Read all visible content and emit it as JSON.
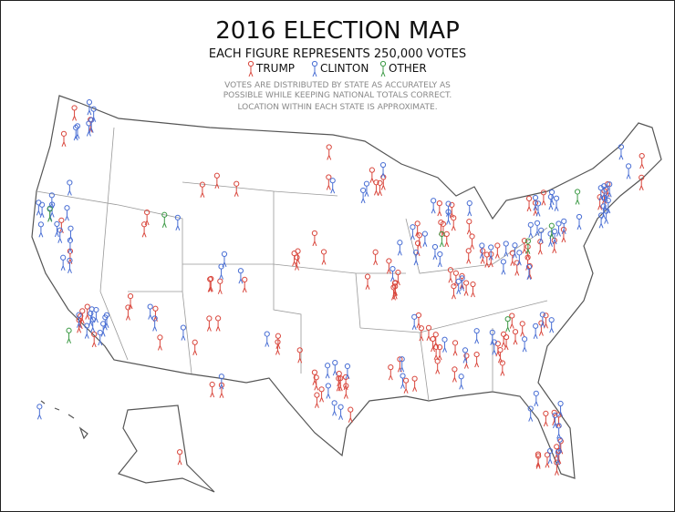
{
  "title": "2016 ELECTION MAP",
  "subtitle": "EACH FIGURE REPRESENTS 250,000 VOTES",
  "legend": [
    {
      "label": "TRUMP",
      "color": "#d9473d"
    },
    {
      "label": "CLINTON",
      "color": "#4a6fd4"
    },
    {
      "label": "OTHER",
      "color": "#3c9a45"
    }
  ],
  "notes": [
    "VOTES ARE DISTRIBUTED BY STATE AS ACCURATELY AS",
    "POSSIBLE WHILE KEEPING NATIONAL TOTALS CORRECT.",
    "LOCATION WITHIN EACH STATE IS APPROXIMATE."
  ]
}
